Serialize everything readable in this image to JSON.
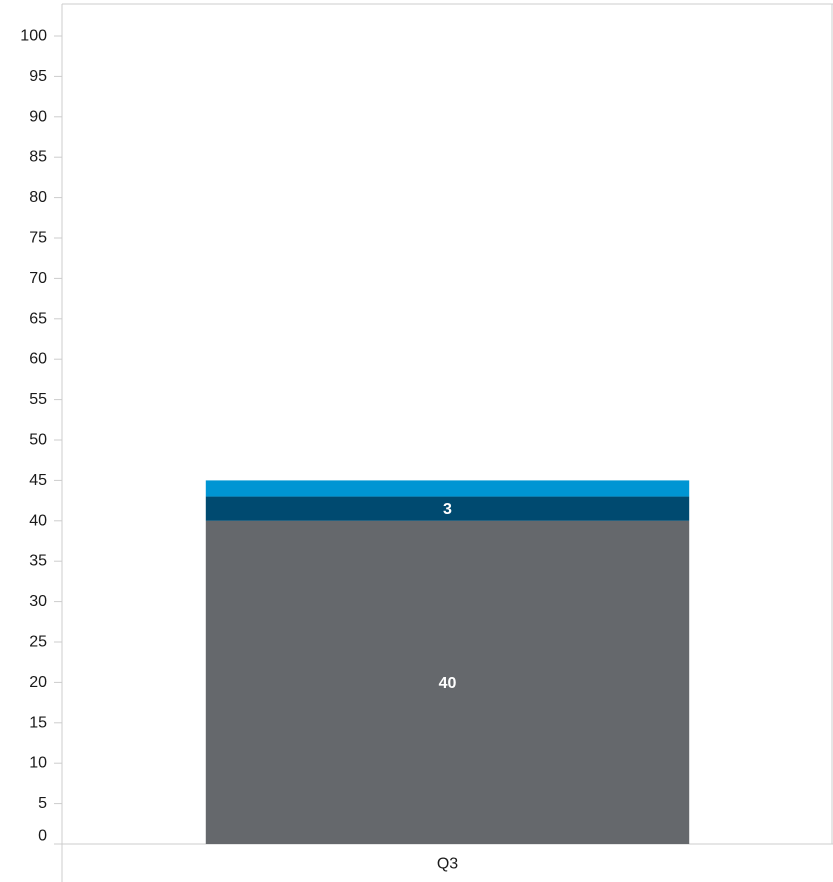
{
  "chart_data": {
    "type": "bar",
    "stacked": true,
    "categories": [
      "Q3"
    ],
    "series": [
      {
        "values": [
          40
        ],
        "color": "#65686c",
        "data_labels": [
          "40"
        ]
      },
      {
        "values": [
          3
        ],
        "color": "#004a70",
        "data_labels": [
          "3"
        ]
      },
      {
        "values": [
          2
        ],
        "color": "#0095d3",
        "data_labels": [
          ""
        ]
      }
    ],
    "ylim": [
      0,
      100
    ],
    "yticks": [
      "0",
      "5",
      "10",
      "15",
      "20",
      "25",
      "30",
      "35",
      "40",
      "45",
      "50",
      "55",
      "60",
      "65",
      "70",
      "75",
      "80",
      "85",
      "90",
      "95",
      "100"
    ],
    "grid": false,
    "legend": "none",
    "title": "",
    "xlabel": "",
    "ylabel": ""
  }
}
